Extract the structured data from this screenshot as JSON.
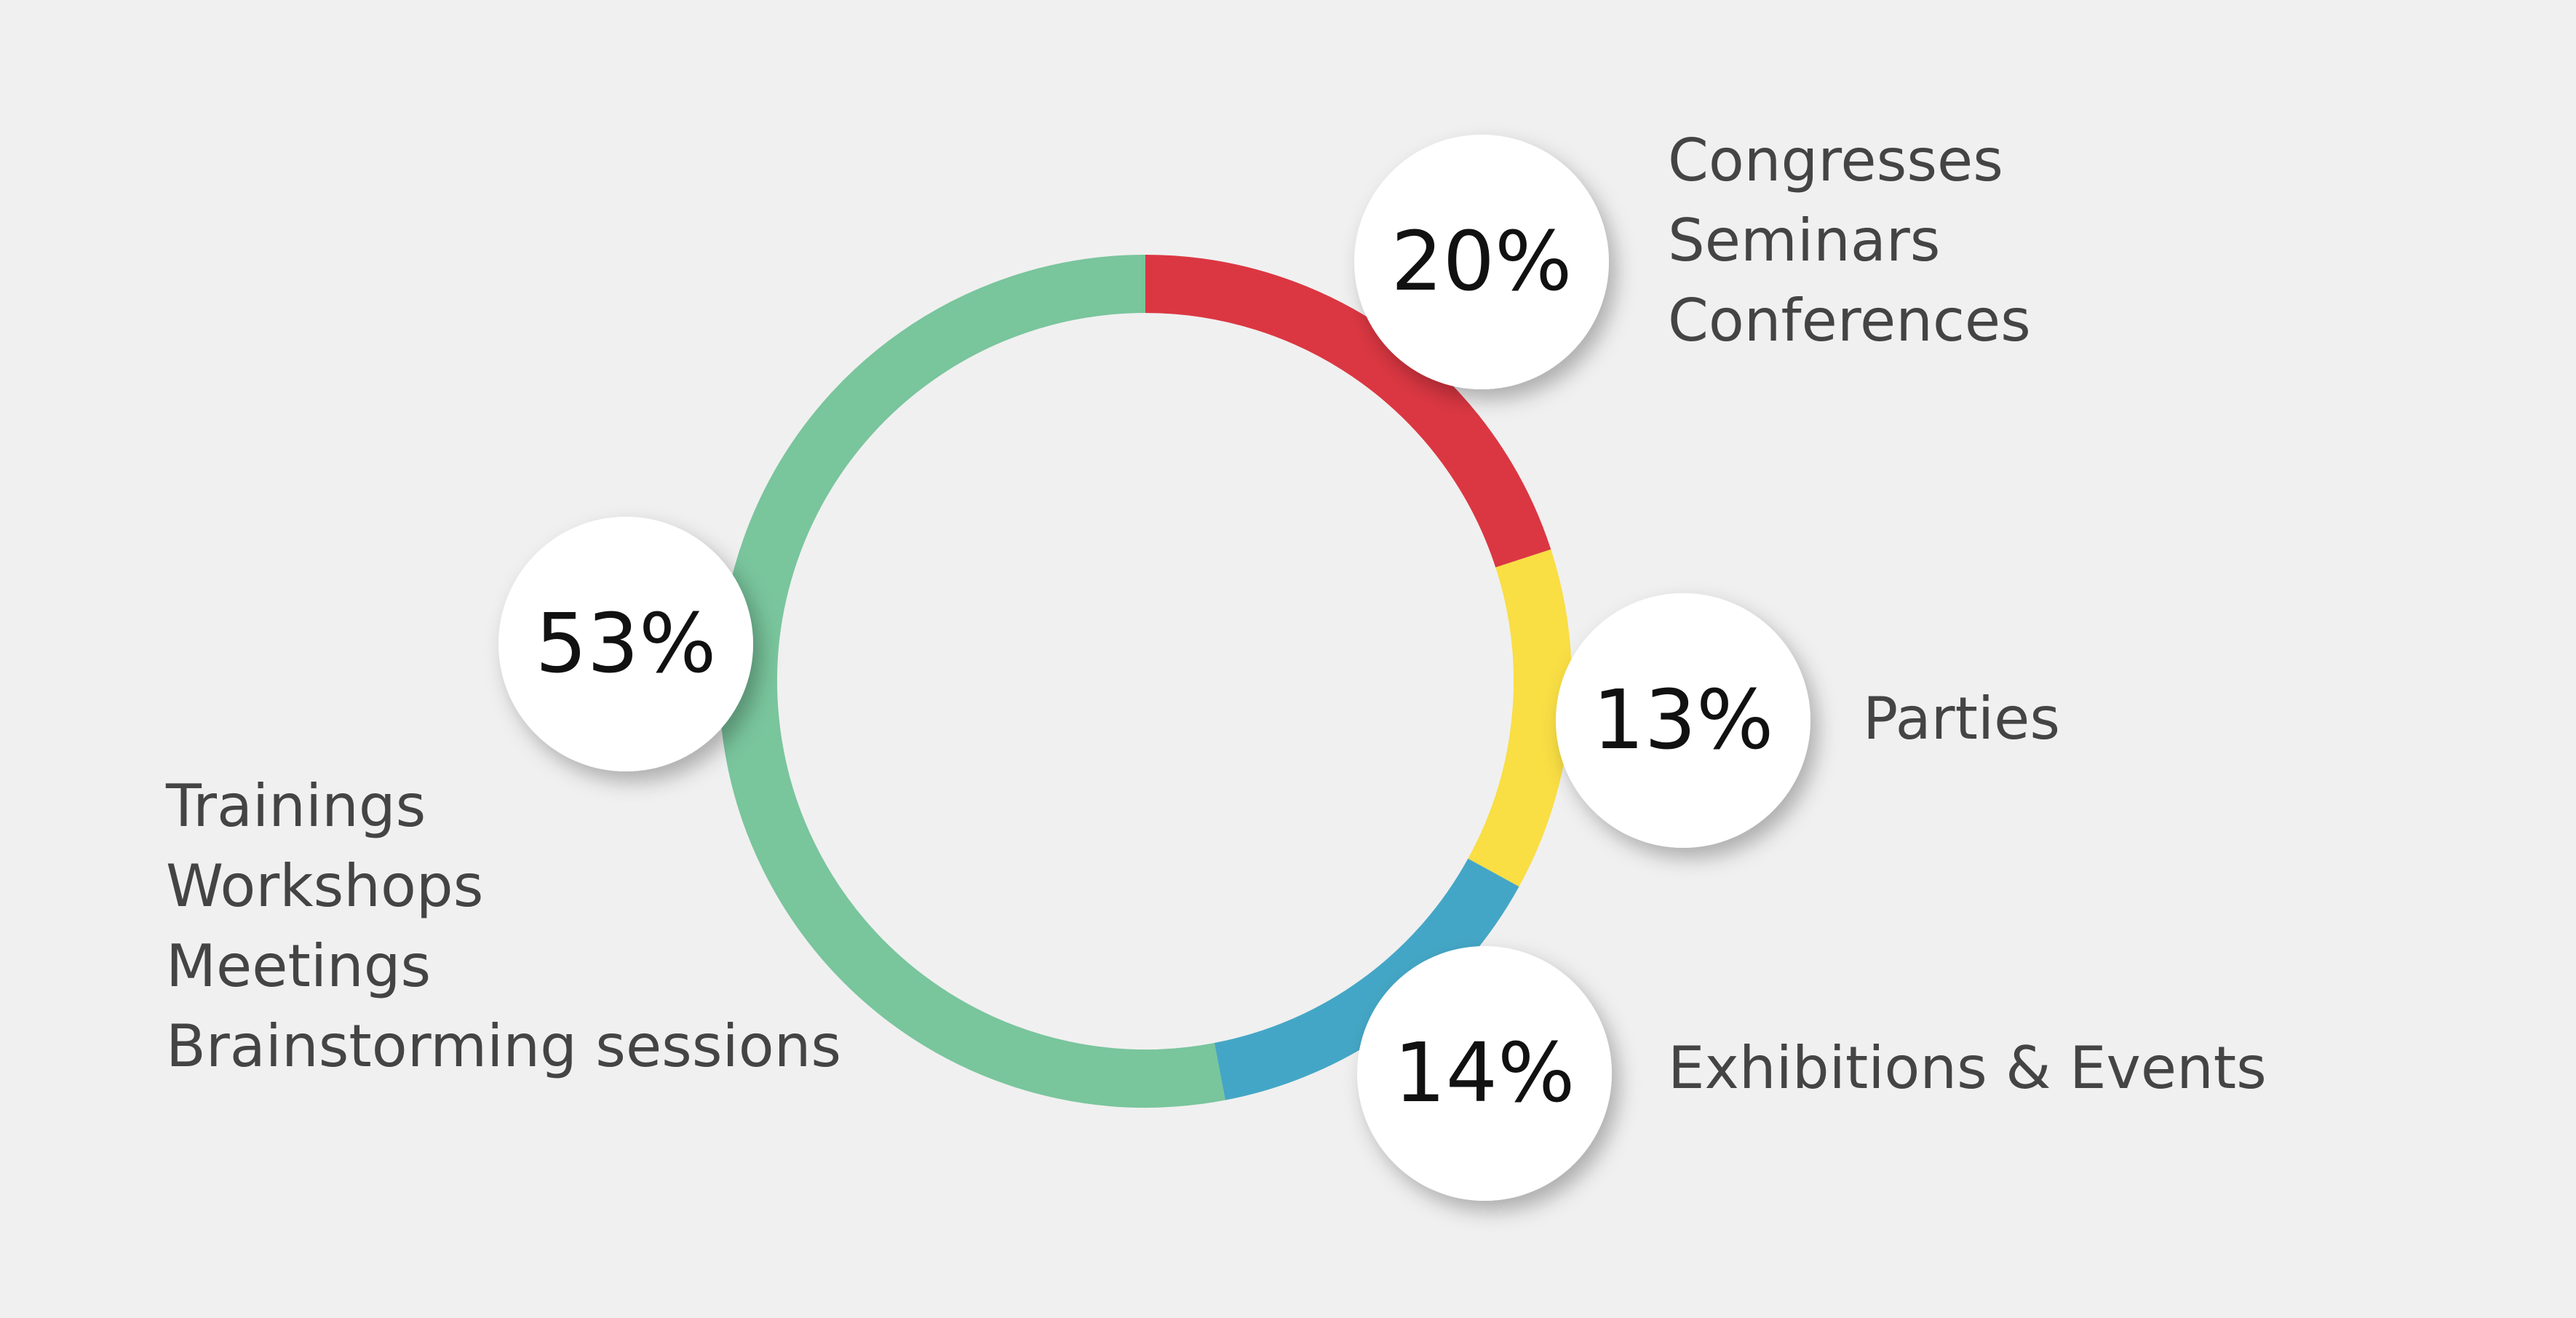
{
  "chart_data": {
    "type": "pie",
    "variant": "donut",
    "categories": [
      "Congresses / Seminars / Conferences",
      "Parties",
      "Exhibitions & Events",
      "Trainings / Workshops / Meetings / Brainstorming sessions"
    ],
    "values": [
      20,
      13,
      14,
      53
    ],
    "value_labels": [
      "20%",
      "13%",
      "14%",
      "53%"
    ],
    "label_lines": [
      [
        "Congresses",
        "Seminars",
        "Conferences"
      ],
      [
        "Parties"
      ],
      [
        "Exhibitions & Events"
      ],
      [
        "Trainings",
        "Workshops",
        "Meetings",
        "Brainstorming sessions"
      ]
    ],
    "colors": [
      "#db3742",
      "#f9de44",
      "#44a6c6",
      "#79c59c"
    ],
    "start_angle_deg": 0,
    "direction": "clockwise",
    "legend": "none"
  }
}
